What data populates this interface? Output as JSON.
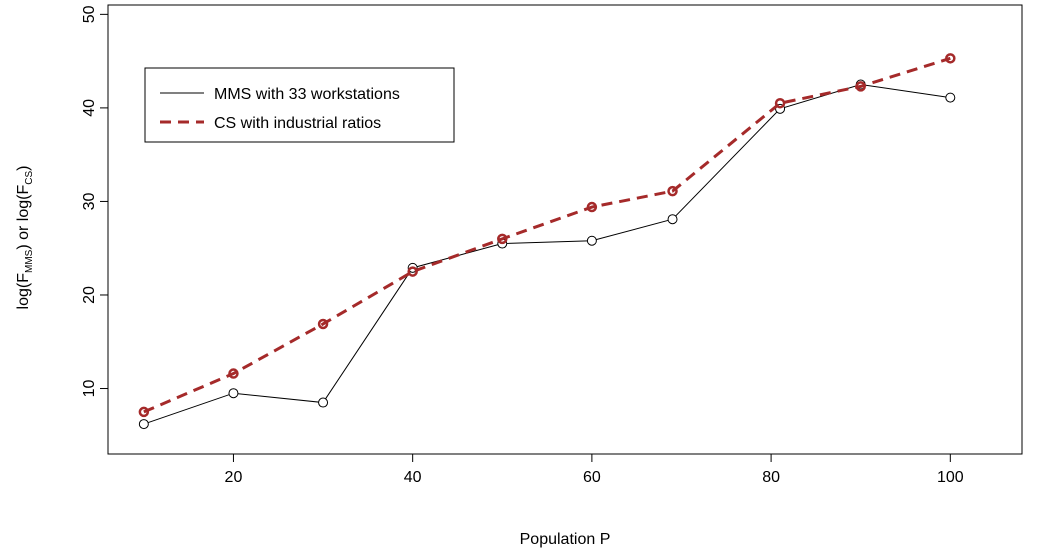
{
  "chart_data": {
    "type": "line",
    "xlabel": "Population P",
    "ylabel": {
      "prefix": "log(F",
      "sub1": "MMS",
      "middle": ") or log(F",
      "sub2": "CS",
      "suffix": ")"
    },
    "xlim": [
      6,
      108
    ],
    "ylim": [
      3,
      51
    ],
    "xticks": [
      20,
      40,
      60,
      80,
      100
    ],
    "yticks": [
      10,
      20,
      30,
      40,
      50
    ],
    "grid": false,
    "legend_position": "top-left",
    "series": [
      {
        "name": "MMS with 33 workstations",
        "style": "solid",
        "color": "#000000",
        "points": [
          [
            10,
            6.2
          ],
          [
            20,
            9.5
          ],
          [
            30,
            8.5
          ],
          [
            40,
            22.9
          ],
          [
            50,
            25.5
          ],
          [
            60,
            25.8
          ],
          [
            69,
            28.1
          ],
          [
            81,
            39.9
          ],
          [
            90,
            42.5
          ],
          [
            100,
            41.1
          ]
        ]
      },
      {
        "name": "CS with industrial ratios",
        "style": "dashed",
        "color": "#a52a2a",
        "points": [
          [
            10,
            7.5
          ],
          [
            20,
            11.6
          ],
          [
            30,
            16.9
          ],
          [
            40,
            22.5
          ],
          [
            50,
            26.0
          ],
          [
            60,
            29.4
          ],
          [
            69,
            31.1
          ],
          [
            81,
            40.5
          ],
          [
            90,
            42.3
          ],
          [
            100,
            45.3
          ]
        ]
      }
    ]
  }
}
